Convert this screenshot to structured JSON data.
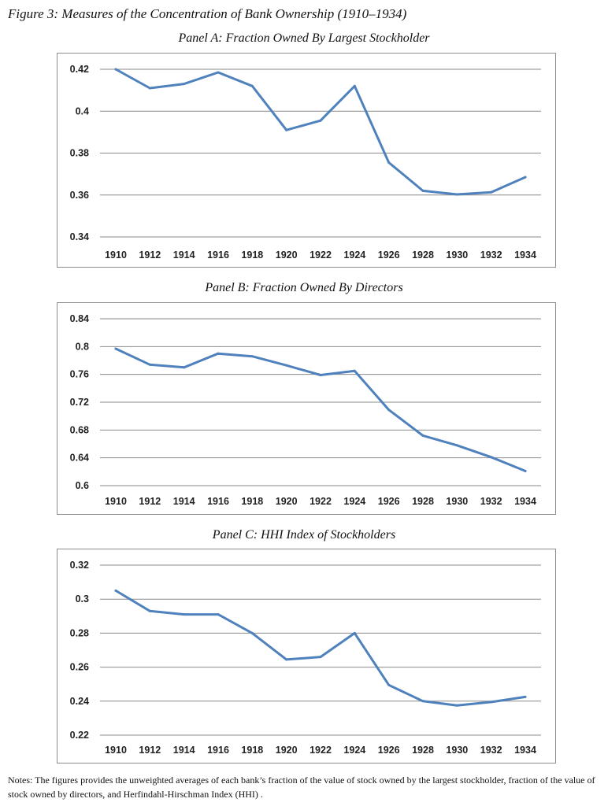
{
  "figure_title": "Figure 3: Measures of the Concentration of Bank Ownership (1910–1934)",
  "notes": "Notes: The figures provides the unweighted averages of each bank’s fraction of the value of stock owned by the largest stockholder, fraction of the value of stock owned by directors, and Herfindahl-Hirschman Index (HHI) .",
  "chart_data": [
    {
      "type": "line",
      "title": "Panel A: Fraction Owned By Largest Stockholder",
      "x": [
        "1910",
        "1912",
        "1914",
        "1916",
        "1918",
        "1920",
        "1922",
        "1924",
        "1926",
        "1928",
        "1930",
        "1932",
        "1934"
      ],
      "values": [
        0.42,
        0.411,
        0.413,
        0.4185,
        0.412,
        0.391,
        0.3955,
        0.412,
        0.3755,
        0.362,
        0.3603,
        0.3613,
        0.3685
      ],
      "yticks": [
        "0.42",
        "0.4",
        "0.38",
        "0.36",
        "0.34"
      ],
      "ylim": [
        0.34,
        0.42
      ],
      "grid": true,
      "color": "#4f81bd"
    },
    {
      "type": "line",
      "title": "Panel B: Fraction Owned By Directors",
      "x": [
        "1910",
        "1912",
        "1914",
        "1916",
        "1918",
        "1920",
        "1922",
        "1924",
        "1926",
        "1928",
        "1930",
        "1932",
        "1934"
      ],
      "values": [
        0.797,
        0.774,
        0.77,
        0.79,
        0.786,
        0.773,
        0.759,
        0.765,
        0.709,
        0.672,
        0.658,
        0.641,
        0.621
      ],
      "yticks": [
        "0.84",
        "0.8",
        "0.76",
        "0.72",
        "0.68",
        "0.64",
        "0.6"
      ],
      "ylim": [
        0.6,
        0.84
      ],
      "grid": true,
      "color": "#4f81bd"
    },
    {
      "type": "line",
      "title": "Panel C: HHI Index of Stockholders",
      "x": [
        "1910",
        "1912",
        "1914",
        "1916",
        "1918",
        "1920",
        "1922",
        "1924",
        "1926",
        "1928",
        "1930",
        "1932",
        "1934"
      ],
      "values": [
        0.305,
        0.293,
        0.291,
        0.291,
        0.28,
        0.2645,
        0.266,
        0.28,
        0.2495,
        0.24,
        0.2375,
        0.2395,
        0.2425
      ],
      "yticks": [
        "0.32",
        "0.3",
        "0.28",
        "0.26",
        "0.24",
        "0.22"
      ],
      "ylim": [
        0.22,
        0.32
      ],
      "grid": true,
      "color": "#4f81bd"
    }
  ]
}
